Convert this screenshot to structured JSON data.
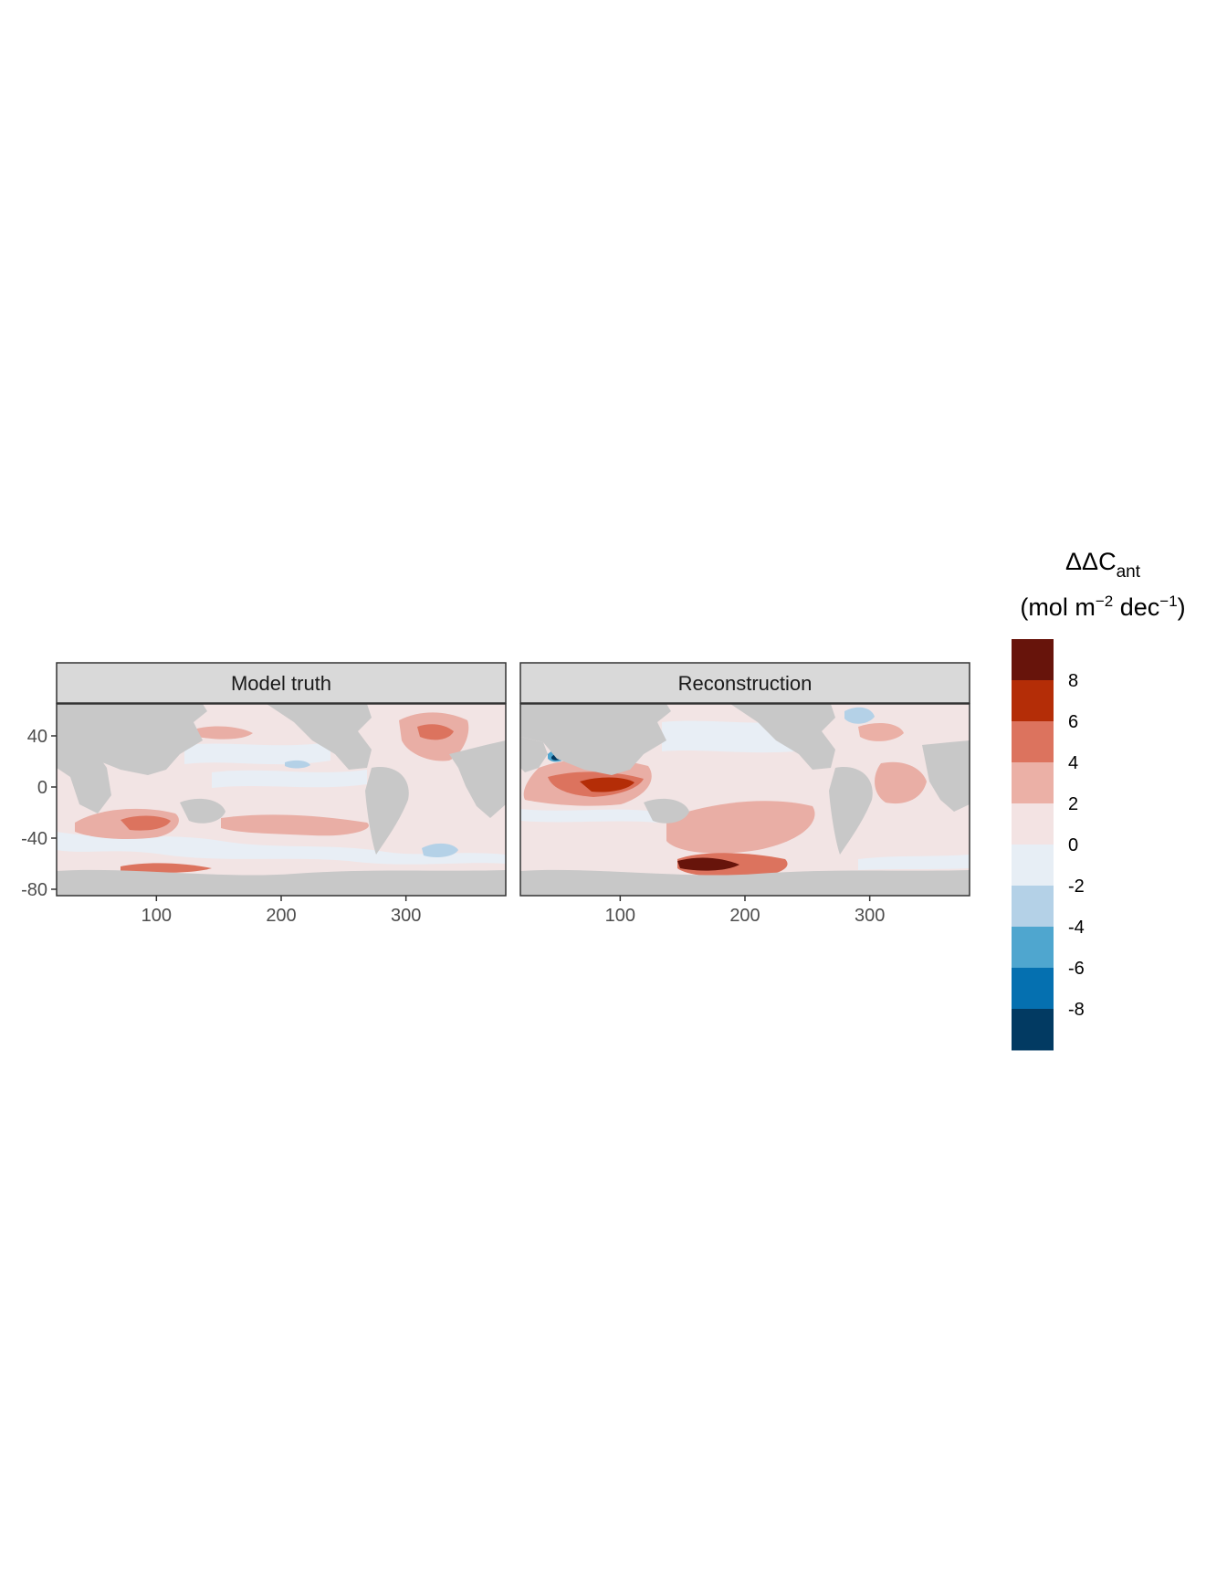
{
  "colors": {
    "land": "#c8c8c8",
    "ocean_zero": "#f2e4e4",
    "strip_bg": "#d9d9d9",
    "panel_border": "#333333"
  },
  "chart_data": {
    "type": "heatmap",
    "panels": [
      {
        "strip": "Model truth",
        "regions": [
          {
            "name": "ocean-background",
            "bin": "0 to 2"
          },
          {
            "name": "north-pacific-near-zero",
            "bin": "-2 to 0"
          },
          {
            "name": "equatorial-pacific-near-zero",
            "bin": "-2 to 0"
          },
          {
            "name": "southern-ocean-near-zero",
            "bin": "-2 to 0"
          },
          {
            "name": "south-indian-patch",
            "bin": "2 to 4"
          },
          {
            "name": "south-indian-core",
            "bin": "4 to 6"
          },
          {
            "name": "south-pacific-patch",
            "bin": "2 to 4"
          },
          {
            "name": "north-atlantic-patch",
            "bin": "2 to 4"
          },
          {
            "name": "north-atlantic-core",
            "bin": "4 to 6"
          },
          {
            "name": "south-atlantic-negative",
            "bin": "-4 to -2"
          },
          {
            "name": "north-pacific-negative",
            "bin": "-4 to -2"
          }
        ]
      },
      {
        "strip": "Reconstruction",
        "regions": [
          {
            "name": "ocean-background",
            "bin": "0 to 2"
          },
          {
            "name": "north-pacific-near-zero",
            "bin": "-2 to 0"
          },
          {
            "name": "indian-ocean-patch",
            "bin": "2 to 4"
          },
          {
            "name": "indian-ocean-core",
            "bin": "4 to 6"
          },
          {
            "name": "indian-ocean-max",
            "bin": "6 to 8"
          },
          {
            "name": "south-pacific-patch",
            "bin": "2 to 4"
          },
          {
            "name": "ross-sea-core",
            "bin": "4 to 6"
          },
          {
            "name": "ross-sea-max",
            "bin": "above 8"
          },
          {
            "name": "atlantic-patch",
            "bin": "2 to 4"
          },
          {
            "name": "red-sea-negative",
            "bin": "-8 to -4"
          },
          {
            "name": "labrador-sea-negative",
            "bin": "-4 to -2"
          }
        ]
      }
    ],
    "x_ticks": [
      "100",
      "200",
      "300"
    ],
    "y_ticks": [
      "40",
      "0",
      "-40",
      "-80"
    ],
    "x_range": [
      20,
      380
    ],
    "y_range": [
      -85,
      65
    ],
    "legend": {
      "title_main": "ΔΔC",
      "title_sub": "ant",
      "unit_open": "(mol m",
      "unit_exp1": "−2",
      "unit_mid": " dec",
      "unit_exp2": "−1",
      "unit_close": ")",
      "labels": [
        "8",
        "6",
        "4",
        "2",
        "0",
        "-2",
        "-4",
        "-6",
        "-8"
      ],
      "colors": [
        "#67140b",
        "#b42d07",
        "#dc735e",
        "#ebb0a6",
        "#f3e3e3",
        "#e7eef5",
        "#b4d1e7",
        "#4fa6cf",
        "#0570b0",
        "#023a62"
      ]
    }
  }
}
